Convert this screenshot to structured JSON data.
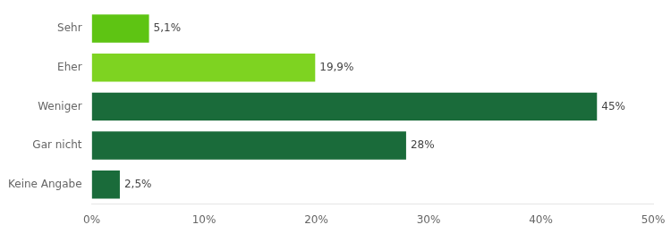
{
  "chart_data": {
    "type": "bar",
    "orientation": "horizontal",
    "categories": [
      "Keine Angabe",
      "Gar nicht",
      "Weniger",
      "Eher",
      "Sehr"
    ],
    "values": [
      2.5,
      28,
      45,
      19.9,
      5.1
    ],
    "value_labels": [
      "2,5%",
      "28%",
      "45%",
      "19,9%",
      "5,1%"
    ],
    "colors": [
      "#1a6b3a",
      "#1a6b3a",
      "#1a6b3a",
      "#7ed321",
      "#5ec413"
    ],
    "xlim": [
      0,
      50
    ],
    "xticks": [
      {
        "value": 0,
        "label": "0%"
      },
      {
        "value": 10,
        "label": "10%"
      },
      {
        "value": 20,
        "label": "20%"
      },
      {
        "value": 30,
        "label": "30%"
      },
      {
        "value": 40,
        "label": "40%"
      },
      {
        "value": 50,
        "label": "50%"
      }
    ],
    "grid": false,
    "data_labels": true
  }
}
